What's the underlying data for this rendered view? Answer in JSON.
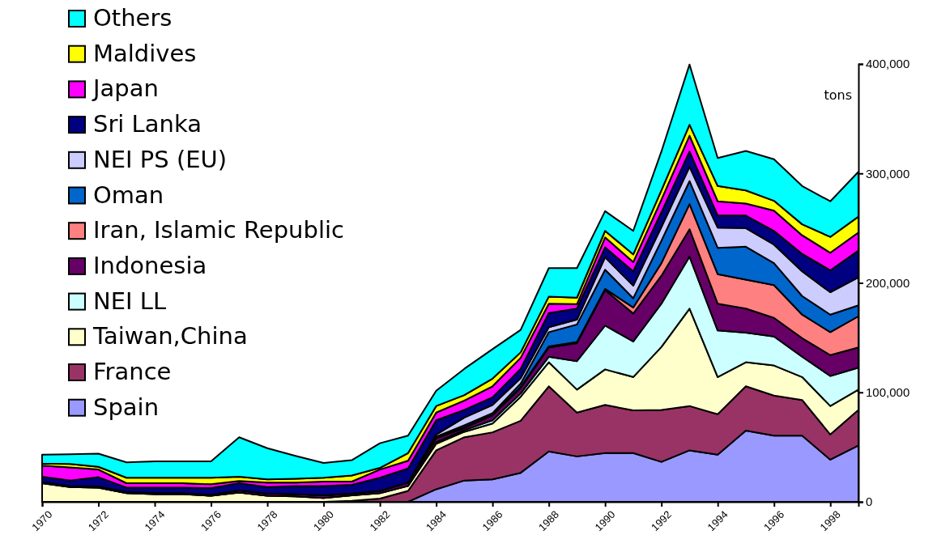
{
  "chart_data": {
    "type": "area",
    "stacked": true,
    "ylabel": "tons",
    "legend": "top left",
    "grid": false,
    "x": [
      1970,
      1971,
      1972,
      1973,
      1974,
      1975,
      1976,
      1977,
      1978,
      1979,
      1980,
      1981,
      1982,
      1983,
      1984,
      1985,
      1986,
      1987,
      1988,
      1989,
      1990,
      1991,
      1992,
      1993,
      1994,
      1995,
      1996,
      1997,
      1998,
      1999
    ],
    "xlim": [
      1970,
      1999
    ],
    "xticks": [
      1970,
      1972,
      1974,
      1976,
      1978,
      1980,
      1982,
      1984,
      1986,
      1988,
      1990,
      1992,
      1994,
      1996,
      1998
    ],
    "ylim": [
      0,
      400000
    ],
    "yticks": [
      0,
      {
        "value": 100000,
        "label": "100,000"
      },
      {
        "value": 200000,
        "label": "200,000"
      },
      {
        "value": 300000,
        "label": "300,000"
      },
      {
        "value": 400000,
        "label": "400,000"
      }
    ],
    "series": [
      {
        "name": "Spain",
        "color": "#9999ff",
        "values": [
          0,
          0,
          0,
          0,
          0,
          0,
          0,
          0,
          0,
          0,
          0,
          0,
          0,
          0,
          11500,
          19500,
          20500,
          26500,
          46000,
          41500,
          44500,
          44500,
          36500,
          47000,
          43000,
          65000,
          60500,
          60500,
          38500,
          51500
        ]
      },
      {
        "name": "France",
        "color": "#993366",
        "values": [
          0,
          0,
          0,
          0,
          0,
          0,
          0,
          0,
          0,
          0,
          0,
          1000,
          3000,
          10000,
          35500,
          39500,
          43000,
          47500,
          59500,
          40000,
          44000,
          39000,
          47500,
          40500,
          37000,
          40500,
          36500,
          32500,
          23000,
          32500
        ]
      },
      {
        "name": "Taiwan,China",
        "color": "#ffffcc",
        "values": [
          17000,
          13500,
          13000,
          8000,
          7000,
          7000,
          5500,
          8500,
          5500,
          5000,
          3500,
          5000,
          5000,
          4500,
          6000,
          5000,
          8000,
          22000,
          22000,
          21000,
          32500,
          30500,
          57500,
          89000,
          34000,
          22000,
          27500,
          21000,
          26000,
          18500
        ]
      },
      {
        "name": "NEI LL",
        "color": "#ccffff",
        "values": [
          0,
          0,
          0,
          0,
          0,
          0,
          0,
          0,
          0,
          0,
          0,
          0,
          0,
          0,
          1500,
          1500,
          3000,
          3000,
          5000,
          26000,
          40000,
          32500,
          39500,
          47500,
          42500,
          27000,
          26500,
          18500,
          27500,
          20000
        ]
      },
      {
        "name": "Indonesia",
        "color": "#660066",
        "values": [
          1000,
          1000,
          1000,
          1000,
          1000,
          1000,
          1000,
          2000,
          2000,
          2000,
          2500,
          1500,
          2000,
          3000,
          3500,
          2000,
          4500,
          5000,
          8500,
          16500,
          32500,
          25500,
          25500,
          25000,
          24500,
          22000,
          17000,
          17000,
          19000,
          18500
        ]
      },
      {
        "name": "Iran, Islamic Republic",
        "color": "#ff8080",
        "values": [
          0,
          0,
          0,
          0,
          0,
          0,
          0,
          0,
          0,
          0,
          0,
          0,
          0,
          0,
          500,
          500,
          500,
          1000,
          1000,
          1000,
          1000,
          5500,
          11500,
          23000,
          27000,
          26500,
          30000,
          21500,
          21000,
          28500
        ]
      },
      {
        "name": "Oman",
        "color": "#0066cc",
        "values": [
          0,
          0,
          0,
          0,
          0,
          0,
          0,
          0,
          0,
          0,
          0,
          0,
          0,
          0,
          1000,
          2000,
          1500,
          3000,
          13000,
          16000,
          17500,
          8500,
          20500,
          21000,
          24000,
          30000,
          20000,
          17000,
          16000,
          10000
        ]
      },
      {
        "name": "NEI PS (EU)",
        "color": "#ccccff",
        "values": [
          0,
          0,
          0,
          0,
          0,
          0,
          0,
          0,
          0,
          0,
          0,
          0,
          0,
          0,
          2000,
          7000,
          7500,
          5000,
          4500,
          4500,
          11500,
          11500,
          12500,
          13000,
          18500,
          17000,
          17000,
          22500,
          20500,
          25500
        ]
      },
      {
        "name": "Sri Lanka",
        "color": "#000080",
        "values": [
          5000,
          5000,
          8500,
          4000,
          5000,
          5000,
          6000,
          6500,
          6000,
          7500,
          8500,
          8000,
          12000,
          13000,
          13000,
          7000,
          7000,
          8500,
          13000,
          10000,
          9000,
          13000,
          13500,
          14000,
          11000,
          11500,
          12500,
          16000,
          20000,
          24500
        ]
      },
      {
        "name": "Japan",
        "color": "#ff00ff",
        "values": [
          10000,
          12000,
          7000,
          4000,
          4000,
          4000,
          3500,
          2000,
          4000,
          3000,
          4000,
          3000,
          7500,
          7000,
          7000,
          8500,
          10000,
          10000,
          8500,
          4000,
          9000,
          8500,
          11500,
          14500,
          13000,
          11000,
          18500,
          17000,
          16000,
          16500
        ]
      },
      {
        "name": "Maldives",
        "color": "#ffff00",
        "values": [
          2000,
          3000,
          2500,
          5000,
          5000,
          5000,
          6000,
          4000,
          3000,
          3500,
          3500,
          5500,
          1500,
          7000,
          6000,
          5000,
          7000,
          5000,
          6500,
          6000,
          6000,
          7000,
          8500,
          10000,
          14000,
          12000,
          9000,
          10000,
          14500,
          14500
        ]
      },
      {
        "name": "Others",
        "color": "#00ffff",
        "values": [
          8000,
          9000,
          12000,
          14000,
          15000,
          15000,
          15000,
          36000,
          28500,
          21000,
          13500,
          14000,
          22500,
          16000,
          14000,
          24000,
          27000,
          20500,
          26000,
          27000,
          18000,
          21500,
          35500,
          55000,
          25500,
          36000,
          38000,
          35000,
          32500,
          41000
        ]
      }
    ]
  }
}
